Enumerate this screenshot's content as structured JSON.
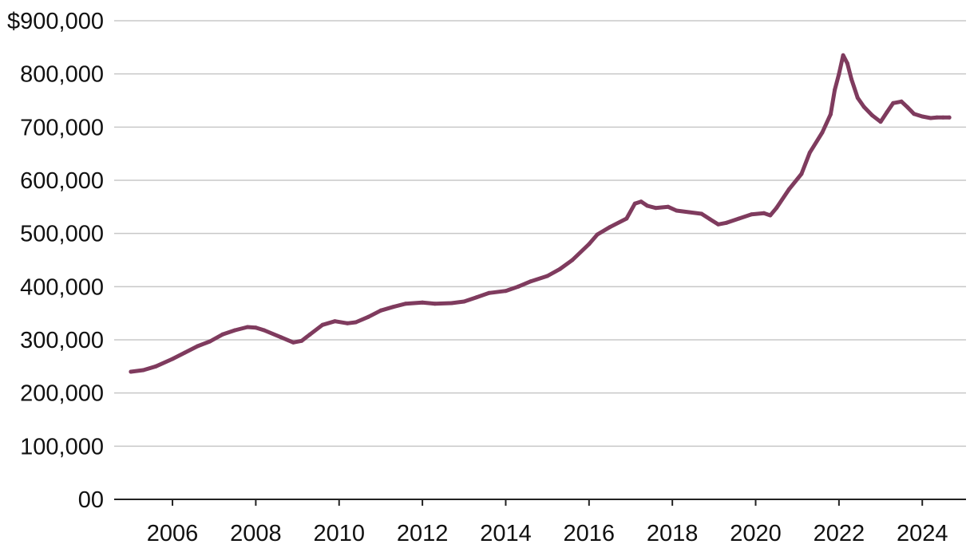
{
  "chart_data": {
    "type": "line",
    "title": "",
    "xlabel": "",
    "ylabel": "",
    "xlim": [
      2004.6,
      2025.05
    ],
    "ylim": [
      0,
      900000
    ],
    "grid": true,
    "line_color": "#7f3b5e",
    "x_ticks": [
      2006,
      2008,
      2010,
      2012,
      2014,
      2016,
      2018,
      2020,
      2022,
      2024
    ],
    "x_tick_labels": [
      "2006",
      "2008",
      "2010",
      "2012",
      "2014",
      "2016",
      "2018",
      "2020",
      "2022",
      "2024"
    ],
    "y_ticks": [
      0,
      100000,
      200000,
      300000,
      400000,
      500000,
      600000,
      700000,
      800000,
      900000
    ],
    "y_tick_labels": [
      "00",
      "100,000",
      "200,000",
      "300,000",
      "400,000",
      "500,000",
      "600,000",
      "700,000",
      "800,000",
      "$900,000"
    ],
    "series": [
      {
        "x": [
          2005.0,
          2005.3,
          2005.6,
          2006.0,
          2006.3,
          2006.6,
          2006.9,
          2007.2,
          2007.5,
          2007.8,
          2008.0,
          2008.2,
          2008.6,
          2008.9,
          2009.1,
          2009.3,
          2009.6,
          2009.9,
          2010.2,
          2010.4,
          2010.7,
          2011.0,
          2011.3,
          2011.6,
          2012.0,
          2012.3,
          2012.7,
          2013.0,
          2013.3,
          2013.6,
          2014.0,
          2014.3,
          2014.6,
          2015.0,
          2015.3,
          2015.6,
          2016.0,
          2016.2,
          2016.5,
          2016.9,
          2017.1,
          2017.25,
          2017.4,
          2017.6,
          2017.9,
          2018.1,
          2018.4,
          2018.7,
          2018.9,
          2019.1,
          2019.3,
          2019.6,
          2019.9,
          2020.2,
          2020.35,
          2020.5,
          2020.8,
          2021.1,
          2021.3,
          2021.6,
          2021.8,
          2021.9,
          2022.0,
          2022.1,
          2022.2,
          2022.3,
          2022.45,
          2022.6,
          2022.8,
          2023.0,
          2023.15,
          2023.3,
          2023.5,
          2023.65,
          2023.8,
          2024.0,
          2024.2,
          2024.35,
          2024.5,
          2024.65
        ],
        "values": [
          240000,
          243000,
          250000,
          264000,
          276000,
          288000,
          297000,
          310000,
          318000,
          324000,
          323000,
          318000,
          305000,
          295000,
          298000,
          310000,
          328000,
          335000,
          331000,
          333000,
          343000,
          355000,
          362000,
          368000,
          370000,
          368000,
          369000,
          372000,
          380000,
          388000,
          392000,
          400000,
          410000,
          420000,
          433000,
          450000,
          480000,
          498000,
          512000,
          528000,
          556000,
          560000,
          552000,
          548000,
          550000,
          543000,
          540000,
          537000,
          527000,
          517000,
          520000,
          528000,
          536000,
          538000,
          534000,
          548000,
          583000,
          612000,
          652000,
          690000,
          724000,
          770000,
          800000,
          835000,
          820000,
          790000,
          755000,
          738000,
          722000,
          710000,
          728000,
          745000,
          748000,
          737000,
          725000,
          720000,
          717000,
          718000,
          718000,
          718000
        ]
      }
    ]
  }
}
